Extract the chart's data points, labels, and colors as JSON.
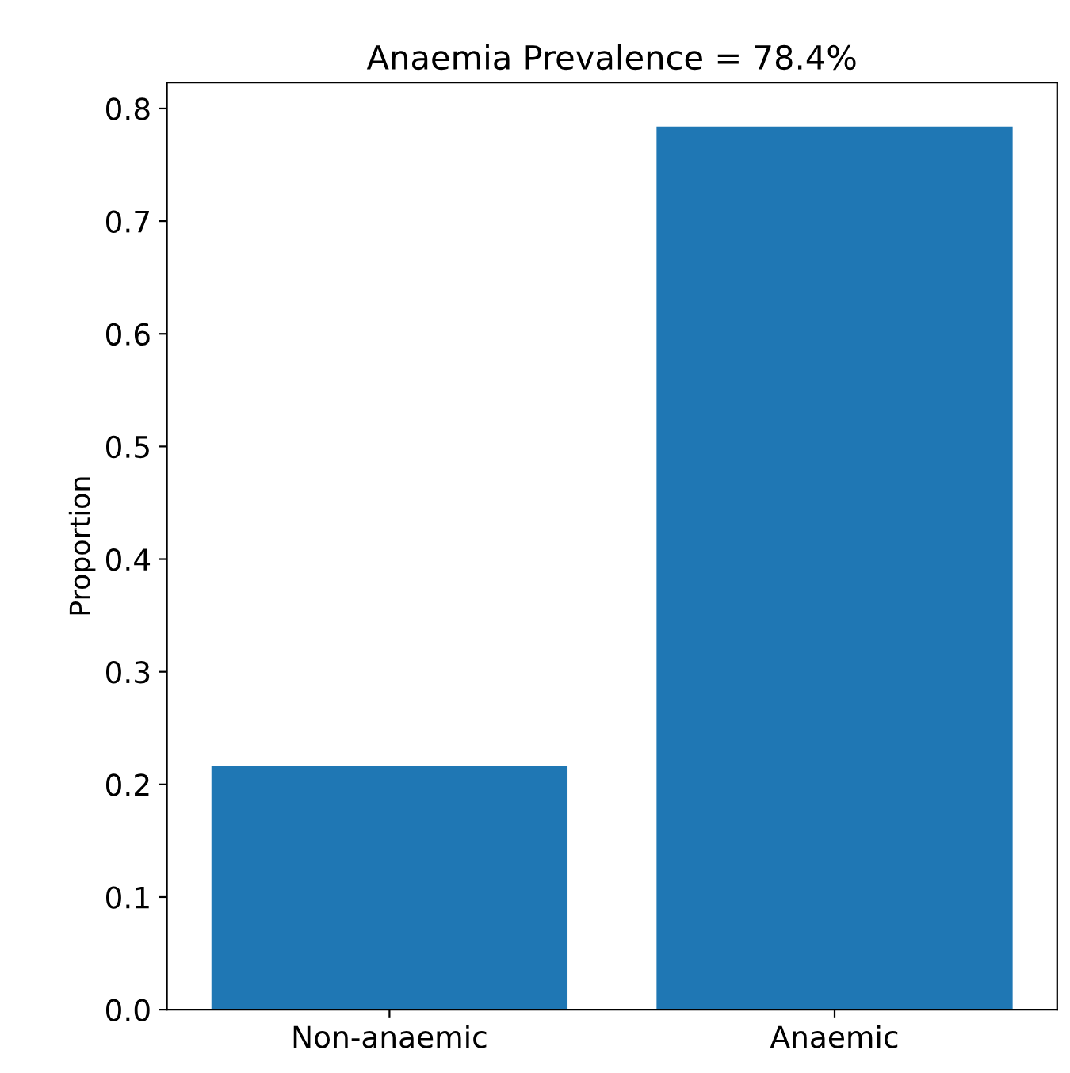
{
  "chart_data": {
    "type": "bar",
    "title": "Anaemia Prevalence = 78.4%",
    "ylabel": "Proportion",
    "categories": [
      "Non-anaemic",
      "Anaemic"
    ],
    "values": [
      0.216,
      0.784
    ],
    "color": "#1f77b4",
    "ylim": [
      0,
      0.823
    ],
    "yticks": [
      {
        "value": 0,
        "label": "0.0"
      },
      0.1,
      0.2,
      0.3,
      0.4,
      0.5,
      0.6,
      0.7,
      0.8
    ],
    "grid": false
  }
}
